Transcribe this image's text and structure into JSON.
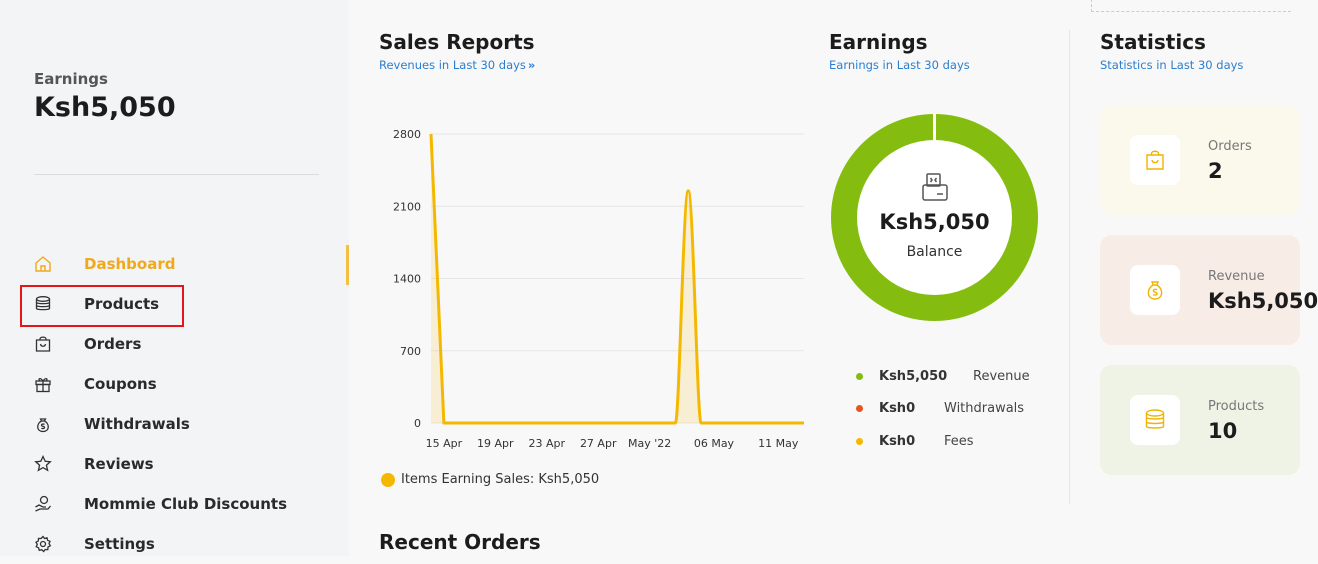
{
  "sidebar": {
    "earnings_label": "Earnings",
    "earnings_value": "Ksh5,050",
    "items": [
      {
        "label": "Dashboard",
        "icon": "home-icon",
        "active": true
      },
      {
        "label": "Products",
        "icon": "database-icon"
      },
      {
        "label": "Orders",
        "icon": "bag-icon"
      },
      {
        "label": "Coupons",
        "icon": "gift-icon"
      },
      {
        "label": "Withdrawals",
        "icon": "money-bag-icon"
      },
      {
        "label": "Reviews",
        "icon": "star-icon"
      },
      {
        "label": "Mommie Club Discounts",
        "icon": "hand-coin-icon"
      },
      {
        "label": "Settings",
        "icon": "gear-icon"
      }
    ]
  },
  "sales": {
    "title": "Sales Reports",
    "subtitle": "Revenues in Last 30 days",
    "legend": "Items Earning Sales: Ksh5,050"
  },
  "earnings": {
    "title": "Earnings",
    "subtitle": "Earnings in Last 30 days",
    "balance_value": "Ksh5,050",
    "balance_label": "Balance",
    "rows": [
      {
        "amount": "Ksh5,050",
        "name": "Revenue",
        "color": "#84bd10"
      },
      {
        "amount": "Ksh0",
        "name": "Withdrawals",
        "color": "#e8541b"
      },
      {
        "amount": "Ksh0",
        "name": "Fees",
        "color": "#f5b800"
      }
    ]
  },
  "statistics": {
    "title": "Statistics",
    "subtitle": "Statistics in Last 30 days",
    "cards": [
      {
        "label": "Orders",
        "value": "2",
        "bg": "#fbf8ec",
        "icon": "bag-icon"
      },
      {
        "label": "Revenue",
        "value": "Ksh5,050",
        "bg": "#f8ece6",
        "icon": "money-bag-icon"
      },
      {
        "label": "Products",
        "value": "10",
        "bg": "#eff3e6",
        "icon": "database-icon"
      }
    ]
  },
  "recent_orders": {
    "title": "Recent Orders"
  },
  "chart_data": {
    "type": "area",
    "x": [
      "15 Apr",
      "19 Apr",
      "23 Apr",
      "27 Apr",
      "May '22",
      "06 May",
      "11 May"
    ],
    "y_ticks": [
      0,
      700,
      1400,
      2100,
      2800
    ],
    "ylim": [
      0,
      2800
    ],
    "series": [
      {
        "name": "Items Earning Sales",
        "color": "#f5b800",
        "points": [
          {
            "x": "14 Apr",
            "y": 2800
          },
          {
            "x": "15 Apr",
            "y": 0
          },
          {
            "x": "03 May",
            "y": 0
          },
          {
            "x": "04 May",
            "y": 2250
          },
          {
            "x": "05 May",
            "y": 0
          },
          {
            "x": "13 May",
            "y": 0
          }
        ]
      }
    ],
    "grid": true
  }
}
